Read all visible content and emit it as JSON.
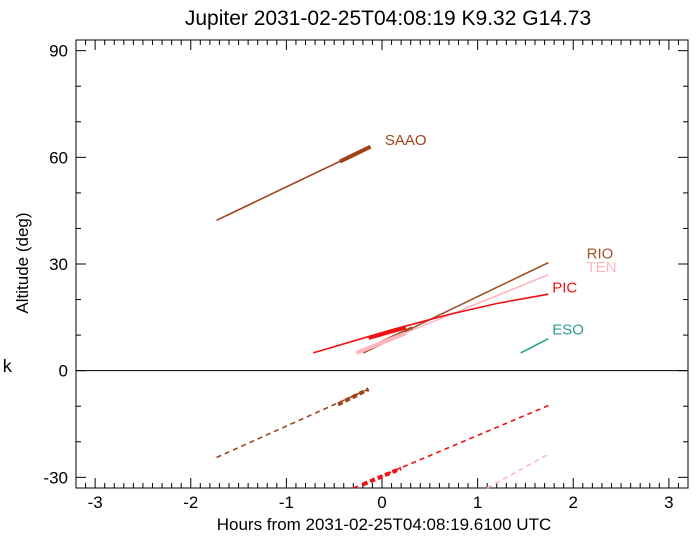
{
  "chart_data": {
    "type": "line",
    "title": "Jupiter 2031-02-25T04:08:19  K9.32  G14.73",
    "xlabel": "Hours from 2031-02-25T04:08:19.6100 UTC",
    "ylabel": "Altitude (deg)",
    "side_label": "k",
    "xlim": [
      -3.2,
      3.2
    ],
    "ylim": [
      -33,
      93
    ],
    "x_ticks": [
      -3,
      -2,
      -1,
      0,
      1,
      2,
      3
    ],
    "x_tick_labels": [
      "-3",
      "-2",
      "-1",
      "0",
      "1",
      "2",
      "3"
    ],
    "y_ticks": [
      -30,
      0,
      30,
      60,
      90
    ],
    "y_tick_labels": [
      "-30",
      "0",
      "30",
      "60",
      "90"
    ],
    "zero_line": true,
    "grid": false,
    "series": [
      {
        "name": "SAAO",
        "color": "#a0421a",
        "label_at": [
          0.03,
          63.5
        ],
        "segments": [
          {
            "style": "solid",
            "points": [
              [
                -1.73,
                42.3
              ],
              [
                -0.12,
                63.0
              ]
            ]
          },
          {
            "style": "thick",
            "points": [
              [
                -0.44,
                58.8
              ],
              [
                -0.12,
                63.0
              ]
            ]
          },
          {
            "style": "dashed",
            "points": [
              [
                -1.73,
                -24.4
              ],
              [
                -0.14,
                -5.2
              ]
            ]
          },
          {
            "style": "thick-dashed",
            "points": [
              [
                -0.46,
                -9.5
              ],
              [
                -0.14,
                -5.2
              ]
            ]
          }
        ]
      },
      {
        "name": "RIO",
        "color": "#a0522d",
        "label_at": [
          2.14,
          31.5
        ],
        "segments": [
          {
            "style": "solid",
            "points": [
              [
                -0.2,
                5.3
              ],
              [
                1.74,
                30.4
              ]
            ]
          },
          {
            "style": "thick",
            "points": [
              [
                -0.2,
                5.3
              ],
              [
                0.32,
                12.0
              ]
            ]
          }
        ]
      },
      {
        "name": "TEN",
        "color": "#ffb6c1",
        "label_at": [
          2.14,
          27.8
        ],
        "segments": [
          {
            "style": "solid",
            "points": [
              [
                -0.27,
                5.0
              ],
              [
                1.74,
                27.0
              ]
            ]
          },
          {
            "style": "thick",
            "points": [
              [
                -0.27,
                5.0
              ],
              [
                0.25,
                10.5
              ]
            ]
          },
          {
            "style": "dashed",
            "points": [
              [
                1.1,
                -33
              ],
              [
                1.74,
                -23.5
              ]
            ]
          }
        ]
      },
      {
        "name": "PIC",
        "color": "#ee1111",
        "label_at": [
          1.78,
          22.0
        ],
        "segments": [
          {
            "style": "solid",
            "points": [
              [
                -0.72,
                5.0
              ],
              [
                0.1,
                11.5
              ],
              [
                0.7,
                15.8
              ],
              [
                1.2,
                18.9
              ],
              [
                1.74,
                21.5
              ]
            ]
          },
          {
            "style": "thick",
            "points": [
              [
                -0.14,
                9.2
              ],
              [
                0.25,
                12.2
              ]
            ]
          },
          {
            "style": "dashed",
            "points": [
              [
                -0.3,
                -33
              ],
              [
                1.74,
                -9.8
              ]
            ]
          },
          {
            "style": "thick-dashed",
            "points": [
              [
                -0.2,
                -32
              ],
              [
                0.2,
                -27.5
              ]
            ]
          }
        ]
      },
      {
        "name": "ESO",
        "color": "#2a9d8f",
        "label_at": [
          1.78,
          10.2
        ],
        "segments": [
          {
            "style": "solid",
            "points": [
              [
                1.45,
                5.0
              ],
              [
                1.74,
                9.0
              ]
            ]
          }
        ]
      }
    ]
  }
}
